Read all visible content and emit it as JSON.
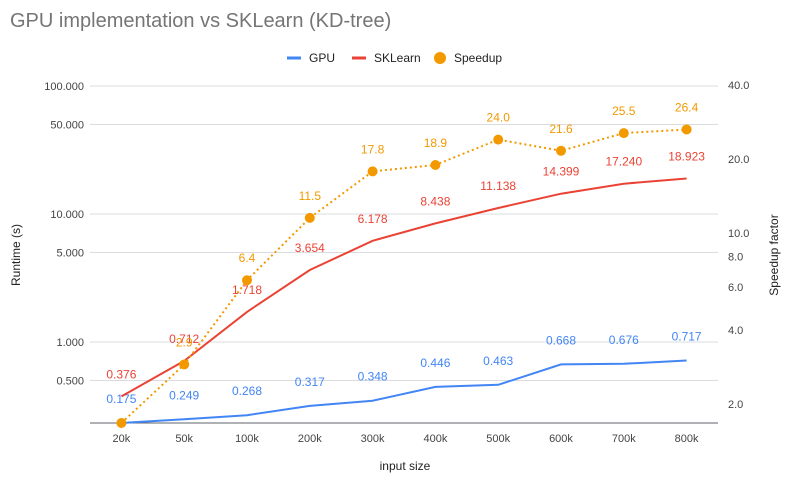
{
  "chart_data": {
    "type": "line",
    "title": "GPU implementation vs SKLearn (KD-tree)",
    "xlabel": "input size",
    "ylabel_left": "Runtime (s)",
    "ylabel_right": "Speedup factor",
    "categories": [
      "20k",
      "50k",
      "100k",
      "200k",
      "300k",
      "400k",
      "500k",
      "600k",
      "700k",
      "800k"
    ],
    "y_left_scale": "log",
    "y_left_ticks": [
      {
        "value": 0.5,
        "label": "0.500"
      },
      {
        "value": 1,
        "label": "1.000"
      },
      {
        "value": 5,
        "label": "5.000"
      },
      {
        "value": 10,
        "label": "10.000"
      },
      {
        "value": 50,
        "label": "50.000"
      },
      {
        "value": 100,
        "label": "100.000"
      }
    ],
    "y_right_scale": "log",
    "y_right_ticks": [
      {
        "value": 2,
        "label": "2.0"
      },
      {
        "value": 4,
        "label": "4.0"
      },
      {
        "value": 6,
        "label": "6.0"
      },
      {
        "value": 8,
        "label": "8.0"
      },
      {
        "value": 10,
        "label": "10.0"
      },
      {
        "value": 20,
        "label": "20.0"
      },
      {
        "value": 40,
        "label": "40.0"
      }
    ],
    "legend_position": "top",
    "gridlines": true,
    "series": [
      {
        "name": "GPU",
        "axis": "left",
        "style": "solid",
        "color": "#4285f4",
        "values": [
          0.175,
          0.249,
          0.268,
          0.317,
          0.348,
          0.446,
          0.463,
          0.668,
          0.676,
          0.717
        ],
        "labels": [
          "0.175",
          "0.249",
          "0.268",
          "0.317",
          "0.348",
          "0.446",
          "0.463",
          "0.668",
          "0.676",
          "0.717"
        ]
      },
      {
        "name": "SKLearn",
        "axis": "left",
        "style": "solid",
        "color": "#ea4335",
        "values": [
          0.376,
          0.712,
          1.718,
          3.654,
          6.178,
          8.438,
          11.138,
          14.399,
          17.24,
          18.923
        ],
        "labels": [
          "0.376",
          "0.712",
          "1.718",
          "3.654",
          "6.178",
          "8.438",
          "11.138",
          "14.399",
          "17.240",
          "18.923"
        ]
      },
      {
        "name": "Speedup",
        "axis": "right",
        "style": "dotted-markers",
        "color": "#f29900",
        "values": [
          1.6,
          2.9,
          6.4,
          11.5,
          17.8,
          18.9,
          24.0,
          21.6,
          25.5,
          26.4
        ],
        "labels": [
          "",
          "2.9",
          "6.4",
          "11.5",
          "17.8",
          "18.9",
          "24.0",
          "21.6",
          "25.5",
          "26.4"
        ]
      }
    ]
  }
}
